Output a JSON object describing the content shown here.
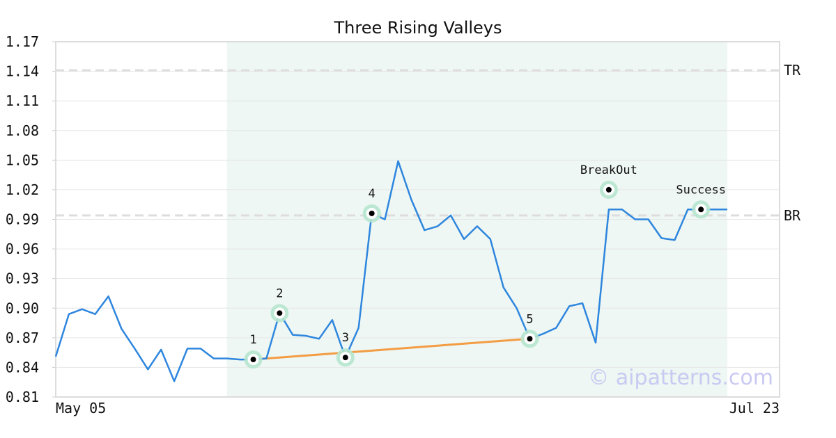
{
  "chart_data": {
    "type": "line",
    "title": "Three Rising Valleys",
    "xlabel": "",
    "ylabel": "",
    "x_tick_labels": [
      "May 05",
      "Jul 23"
    ],
    "y_ticks": [
      "0.81",
      "0.84",
      "0.87",
      "0.90",
      "0.93",
      "0.96",
      "0.99",
      "1.02",
      "1.05",
      "1.08",
      "1.11",
      "1.14",
      "1.17"
    ],
    "ylim": [
      0.81,
      1.17
    ],
    "grid": true,
    "series": [
      {
        "values": [
          0.851,
          0.894,
          0.899,
          0.894,
          0.912,
          0.879,
          0.859,
          0.838,
          0.858,
          0.826,
          0.859,
          0.859,
          0.849,
          0.849,
          0.848,
          0.848,
          0.849,
          0.895,
          0.873,
          0.872,
          0.869,
          0.888,
          0.85,
          0.88,
          0.996,
          0.99,
          1.049,
          1.01,
          0.979,
          0.983,
          0.994,
          0.97,
          0.983,
          0.97,
          0.921,
          0.9,
          0.869,
          0.874,
          0.88,
          0.902,
          0.905,
          0.865,
          1.0,
          1.0,
          0.99,
          0.99,
          0.971,
          0.969,
          1.0,
          1.0,
          1.0,
          1.0
        ],
        "color": "#2e86de"
      }
    ],
    "pattern_line": {
      "from_index": 15,
      "to_index": 36,
      "from_value": 0.848,
      "to_value": 0.869,
      "color": "#f39c43"
    },
    "highlight_region": {
      "from_index": 13,
      "to_index": 51,
      "color": "#eef7f3"
    },
    "levels": [
      {
        "label": "TR",
        "value": 1.141
      },
      {
        "label": "BR",
        "value": 0.994
      }
    ],
    "annotations": [
      {
        "label": "1",
        "index": 15,
        "value": 0.848,
        "label_pos": "above"
      },
      {
        "label": "2",
        "index": 17,
        "value": 0.895,
        "label_pos": "above"
      },
      {
        "label": "3",
        "index": 22,
        "value": 0.85,
        "label_pos": "above"
      },
      {
        "label": "4",
        "index": 24,
        "value": 0.996,
        "label_pos": "above"
      },
      {
        "label": "5",
        "index": 36,
        "value": 0.869,
        "label_pos": "above"
      },
      {
        "label": "BreakOut",
        "index": 42,
        "value": 1.02,
        "label_pos": "above"
      },
      {
        "label": "Success",
        "index": 49,
        "value": 1.0,
        "label_pos": "above"
      }
    ],
    "watermark": "© aipatterns.com"
  }
}
